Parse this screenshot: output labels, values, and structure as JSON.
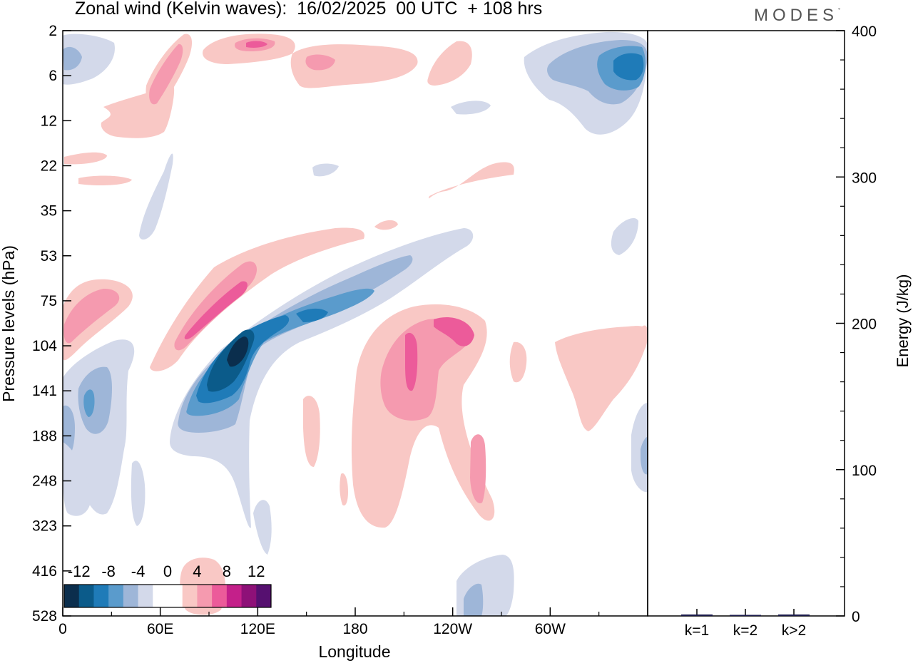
{
  "title": "Zonal wind (Kelvin waves):  16/02/2025  00 UTC  + 108 hrs",
  "brand": "MODES",
  "brand_mark": "°",
  "colors": {
    "neg": [
      "#0b2e4d",
      "#0b5b8a",
      "#1f7bb8",
      "#5a9bcc",
      "#9eb6d8",
      "#d3d9ea"
    ],
    "pos": [
      "#f9c8c5",
      "#f59aaf",
      "#ec5b9a",
      "#c4208a",
      "#8e1178",
      "#561070"
    ]
  },
  "chart_data": [
    {
      "type": "heatmap",
      "xlabel": "Longitude",
      "ylabel": "Pressure levels (hPa)",
      "x_ticks": [
        "0",
        "60E",
        "120E",
        "180",
        "120W",
        "60W"
      ],
      "y_ticks": [
        "2",
        "6",
        "12",
        "22",
        "35",
        "53",
        "75",
        "104",
        "141",
        "188",
        "248",
        "323",
        "416",
        "528"
      ],
      "y_scale": "log",
      "colorbar": {
        "labels": [
          "-12",
          "-8",
          "-4",
          "0",
          "4",
          "8",
          "12"
        ],
        "placement": "bottom-left"
      }
    },
    {
      "type": "bar",
      "ylabel": "Energy (J/kg)",
      "categories": [
        "k=1",
        "k=2",
        "k>2"
      ],
      "values": [
        1,
        0.5,
        1
      ],
      "ylim": [
        0,
        400
      ],
      "y_ticks": [
        "0",
        "100",
        "200",
        "300",
        "400"
      ]
    }
  ]
}
